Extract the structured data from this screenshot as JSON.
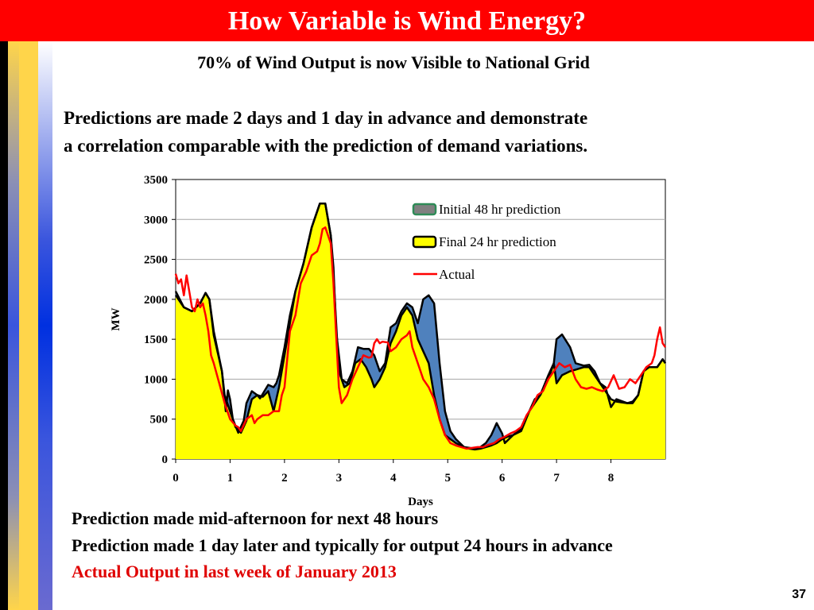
{
  "slide": {
    "title": "How Variable is Wind Energy?",
    "subtitle": "70% of Wind Output is now Visible to National Grid",
    "intro_line1": "Predictions are made 2 days and 1 day in advance and demonstrate",
    "intro_line2": "a correlation comparable with the prediction of demand variations.",
    "bottom_line1": "Prediction made mid-afternoon for next 48 hours",
    "bottom_line2": "Prediction made 1 day  later and typically for output 24 hours in advance",
    "bottom_line3": "Actual Output in last week of January 2013",
    "page_number": "37"
  },
  "colors": {
    "title_bar": "#ff0000",
    "initial_fill": "#4f81bd",
    "final_fill": "#ffff00",
    "actual_line": "#ff0000"
  },
  "chart_data": {
    "type": "area",
    "xlabel": "Days",
    "ylabel": "MW",
    "xlim": [
      0,
      9
    ],
    "ylim": [
      0,
      3500
    ],
    "xticks": [
      "0",
      "1",
      "2",
      "3",
      "4",
      "5",
      "6",
      "7",
      "8"
    ],
    "yticks": [
      "0",
      "500",
      "1000",
      "1500",
      "2000",
      "2500",
      "3000",
      "3500"
    ],
    "grid": true,
    "legend_position": "top-right",
    "series": [
      {
        "name": "Initial 48 hr prediction",
        "kind": "area",
        "points": [
          [
            0,
            2100
          ],
          [
            0.15,
            1900
          ],
          [
            0.3,
            1850
          ],
          [
            0.45,
            1950
          ],
          [
            0.55,
            2080
          ],
          [
            0.62,
            2000
          ],
          [
            0.7,
            1600
          ],
          [
            0.85,
            1100
          ],
          [
            0.92,
            600
          ],
          [
            0.96,
            860
          ],
          [
            1.0,
            750
          ],
          [
            1.05,
            500
          ],
          [
            1.15,
            330
          ],
          [
            1.25,
            480
          ],
          [
            1.3,
            700
          ],
          [
            1.4,
            850
          ],
          [
            1.5,
            800
          ],
          [
            1.55,
            760
          ],
          [
            1.7,
            930
          ],
          [
            1.8,
            900
          ],
          [
            1.85,
            950
          ],
          [
            1.9,
            1050
          ],
          [
            2.0,
            1400
          ],
          [
            2.1,
            1800
          ],
          [
            2.2,
            2100
          ],
          [
            2.35,
            2450
          ],
          [
            2.5,
            2900
          ],
          [
            2.65,
            3200
          ],
          [
            2.75,
            3200
          ],
          [
            2.85,
            2800
          ],
          [
            2.9,
            2400
          ],
          [
            2.95,
            1600
          ],
          [
            3.05,
            1000
          ],
          [
            3.15,
            950
          ],
          [
            3.25,
            1100
          ],
          [
            3.35,
            1400
          ],
          [
            3.45,
            1380
          ],
          [
            3.55,
            1380
          ],
          [
            3.65,
            1300
          ],
          [
            3.75,
            1100
          ],
          [
            3.85,
            1200
          ],
          [
            3.95,
            1650
          ],
          [
            4.05,
            1700
          ],
          [
            4.15,
            1850
          ],
          [
            4.25,
            1950
          ],
          [
            4.35,
            1900
          ],
          [
            4.45,
            1700
          ],
          [
            4.55,
            2000
          ],
          [
            4.65,
            2050
          ],
          [
            4.75,
            1950
          ],
          [
            4.85,
            1200
          ],
          [
            4.95,
            600
          ],
          [
            5.05,
            350
          ],
          [
            5.15,
            250
          ],
          [
            5.3,
            150
          ],
          [
            5.4,
            140
          ],
          [
            5.5,
            130
          ],
          [
            5.6,
            150
          ],
          [
            5.7,
            200
          ],
          [
            5.8,
            300
          ],
          [
            5.9,
            450
          ],
          [
            6.0,
            320
          ],
          [
            6.05,
            200
          ],
          [
            6.2,
            300
          ],
          [
            6.35,
            380
          ],
          [
            6.5,
            600
          ],
          [
            6.6,
            750
          ],
          [
            6.7,
            800
          ],
          [
            6.85,
            1050
          ],
          [
            6.95,
            1200
          ],
          [
            7.0,
            1500
          ],
          [
            7.1,
            1560
          ],
          [
            7.25,
            1400
          ],
          [
            7.35,
            1200
          ],
          [
            7.5,
            1170
          ],
          [
            7.6,
            1180
          ],
          [
            7.7,
            1100
          ],
          [
            7.8,
            950
          ],
          [
            7.9,
            900
          ],
          [
            8.0,
            650
          ],
          [
            8.1,
            750
          ],
          [
            8.3,
            700
          ],
          [
            8.4,
            700
          ],
          [
            8.5,
            800
          ],
          [
            8.6,
            1100
          ],
          [
            8.7,
            1150
          ],
          [
            8.85,
            1150
          ],
          [
            8.95,
            1250
          ],
          [
            9.0,
            1200
          ]
        ]
      },
      {
        "name": "Final 24 hr prediction",
        "kind": "area",
        "points": [
          [
            0,
            2050
          ],
          [
            0.15,
            1900
          ],
          [
            0.3,
            1850
          ],
          [
            0.45,
            1950
          ],
          [
            0.55,
            2080
          ],
          [
            0.62,
            2000
          ],
          [
            0.7,
            1550
          ],
          [
            0.85,
            1100
          ],
          [
            0.9,
            800
          ],
          [
            1.0,
            600
          ],
          [
            1.1,
            400
          ],
          [
            1.2,
            330
          ],
          [
            1.3,
            480
          ],
          [
            1.4,
            750
          ],
          [
            1.5,
            800
          ],
          [
            1.6,
            780
          ],
          [
            1.7,
            850
          ],
          [
            1.8,
            600
          ],
          [
            1.9,
            900
          ],
          [
            2.0,
            1300
          ],
          [
            2.1,
            1700
          ],
          [
            2.2,
            2100
          ],
          [
            2.35,
            2450
          ],
          [
            2.5,
            2900
          ],
          [
            2.65,
            3200
          ],
          [
            2.75,
            3200
          ],
          [
            2.85,
            2800
          ],
          [
            2.9,
            2300
          ],
          [
            3.0,
            1100
          ],
          [
            3.1,
            900
          ],
          [
            3.2,
            950
          ],
          [
            3.3,
            1200
          ],
          [
            3.4,
            1250
          ],
          [
            3.5,
            1150
          ],
          [
            3.6,
            1000
          ],
          [
            3.65,
            900
          ],
          [
            3.75,
            1000
          ],
          [
            3.85,
            1150
          ],
          [
            3.95,
            1450
          ],
          [
            4.05,
            1600
          ],
          [
            4.15,
            1800
          ],
          [
            4.25,
            1900
          ],
          [
            4.35,
            1800
          ],
          [
            4.45,
            1500
          ],
          [
            4.55,
            1350
          ],
          [
            4.65,
            1200
          ],
          [
            4.75,
            800
          ],
          [
            4.85,
            500
          ],
          [
            4.95,
            300
          ],
          [
            5.05,
            250
          ],
          [
            5.15,
            200
          ],
          [
            5.3,
            150
          ],
          [
            5.4,
            130
          ],
          [
            5.5,
            120
          ],
          [
            5.6,
            130
          ],
          [
            5.7,
            150
          ],
          [
            5.8,
            170
          ],
          [
            5.9,
            200
          ],
          [
            6.0,
            250
          ],
          [
            6.1,
            280
          ],
          [
            6.2,
            300
          ],
          [
            6.35,
            350
          ],
          [
            6.5,
            600
          ],
          [
            6.6,
            700
          ],
          [
            6.7,
            800
          ],
          [
            6.85,
            1000
          ],
          [
            6.95,
            1200
          ],
          [
            7.0,
            950
          ],
          [
            7.1,
            1050
          ],
          [
            7.25,
            1100
          ],
          [
            7.35,
            1120
          ],
          [
            7.5,
            1150
          ],
          [
            7.6,
            1150
          ],
          [
            7.7,
            1050
          ],
          [
            7.8,
            950
          ],
          [
            7.9,
            850
          ],
          [
            8.0,
            750
          ],
          [
            8.1,
            720
          ],
          [
            8.3,
            700
          ],
          [
            8.4,
            720
          ],
          [
            8.5,
            800
          ],
          [
            8.6,
            1100
          ],
          [
            8.7,
            1150
          ],
          [
            8.85,
            1150
          ],
          [
            8.95,
            1250
          ],
          [
            9.0,
            1200
          ]
        ]
      },
      {
        "name": "Actual",
        "kind": "line",
        "points": [
          [
            0,
            2320
          ],
          [
            0.05,
            2200
          ],
          [
            0.1,
            2250
          ],
          [
            0.15,
            2050
          ],
          [
            0.2,
            2300
          ],
          [
            0.25,
            2100
          ],
          [
            0.3,
            1900
          ],
          [
            0.35,
            1850
          ],
          [
            0.4,
            2000
          ],
          [
            0.45,
            1900
          ],
          [
            0.5,
            1950
          ],
          [
            0.55,
            1800
          ],
          [
            0.6,
            1600
          ],
          [
            0.65,
            1300
          ],
          [
            0.7,
            1200
          ],
          [
            0.8,
            950
          ],
          [
            0.9,
            700
          ],
          [
            1.0,
            500
          ],
          [
            1.1,
            420
          ],
          [
            1.15,
            400
          ],
          [
            1.2,
            350
          ],
          [
            1.3,
            500
          ],
          [
            1.4,
            550
          ],
          [
            1.45,
            450
          ],
          [
            1.5,
            500
          ],
          [
            1.6,
            550
          ],
          [
            1.7,
            550
          ],
          [
            1.8,
            600
          ],
          [
            1.9,
            600
          ],
          [
            1.95,
            800
          ],
          [
            2.0,
            900
          ],
          [
            2.05,
            1250
          ],
          [
            2.1,
            1600
          ],
          [
            2.2,
            1800
          ],
          [
            2.3,
            2200
          ],
          [
            2.4,
            2350
          ],
          [
            2.5,
            2550
          ],
          [
            2.6,
            2600
          ],
          [
            2.65,
            2700
          ],
          [
            2.7,
            2880
          ],
          [
            2.75,
            2900
          ],
          [
            2.8,
            2800
          ],
          [
            2.85,
            2700
          ],
          [
            2.9,
            2200
          ],
          [
            3.0,
            900
          ],
          [
            3.05,
            700
          ],
          [
            3.15,
            800
          ],
          [
            3.25,
            1000
          ],
          [
            3.35,
            1150
          ],
          [
            3.45,
            1300
          ],
          [
            3.55,
            1270
          ],
          [
            3.6,
            1280
          ],
          [
            3.65,
            1450
          ],
          [
            3.7,
            1500
          ],
          [
            3.75,
            1450
          ],
          [
            3.8,
            1470
          ],
          [
            3.9,
            1460
          ],
          [
            3.95,
            1350
          ],
          [
            4.05,
            1400
          ],
          [
            4.15,
            1500
          ],
          [
            4.25,
            1550
          ],
          [
            4.3,
            1600
          ],
          [
            4.35,
            1400
          ],
          [
            4.45,
            1200
          ],
          [
            4.55,
            1000
          ],
          [
            4.65,
            900
          ],
          [
            4.75,
            750
          ],
          [
            4.85,
            500
          ],
          [
            4.95,
            300
          ],
          [
            5.05,
            200
          ],
          [
            5.15,
            170
          ],
          [
            5.25,
            150
          ],
          [
            5.35,
            130
          ],
          [
            5.45,
            140
          ],
          [
            5.55,
            150
          ],
          [
            5.65,
            150
          ],
          [
            5.75,
            180
          ],
          [
            5.85,
            200
          ],
          [
            5.95,
            250
          ],
          [
            6.05,
            280
          ],
          [
            6.15,
            320
          ],
          [
            6.25,
            350
          ],
          [
            6.35,
            400
          ],
          [
            6.45,
            550
          ],
          [
            6.55,
            650
          ],
          [
            6.65,
            800
          ],
          [
            6.75,
            850
          ],
          [
            6.85,
            1000
          ],
          [
            6.95,
            1100
          ],
          [
            7.05,
            1200
          ],
          [
            7.15,
            1150
          ],
          [
            7.25,
            1180
          ],
          [
            7.35,
            1000
          ],
          [
            7.45,
            900
          ],
          [
            7.55,
            880
          ],
          [
            7.65,
            900
          ],
          [
            7.75,
            870
          ],
          [
            7.85,
            850
          ],
          [
            7.95,
            900
          ],
          [
            8.05,
            1050
          ],
          [
            8.15,
            880
          ],
          [
            8.25,
            900
          ],
          [
            8.35,
            1000
          ],
          [
            8.45,
            950
          ],
          [
            8.55,
            1050
          ],
          [
            8.65,
            1150
          ],
          [
            8.75,
            1200
          ],
          [
            8.8,
            1300
          ],
          [
            8.85,
            1500
          ],
          [
            8.9,
            1650
          ],
          [
            8.95,
            1450
          ],
          [
            9.0,
            1400
          ]
        ]
      }
    ]
  }
}
